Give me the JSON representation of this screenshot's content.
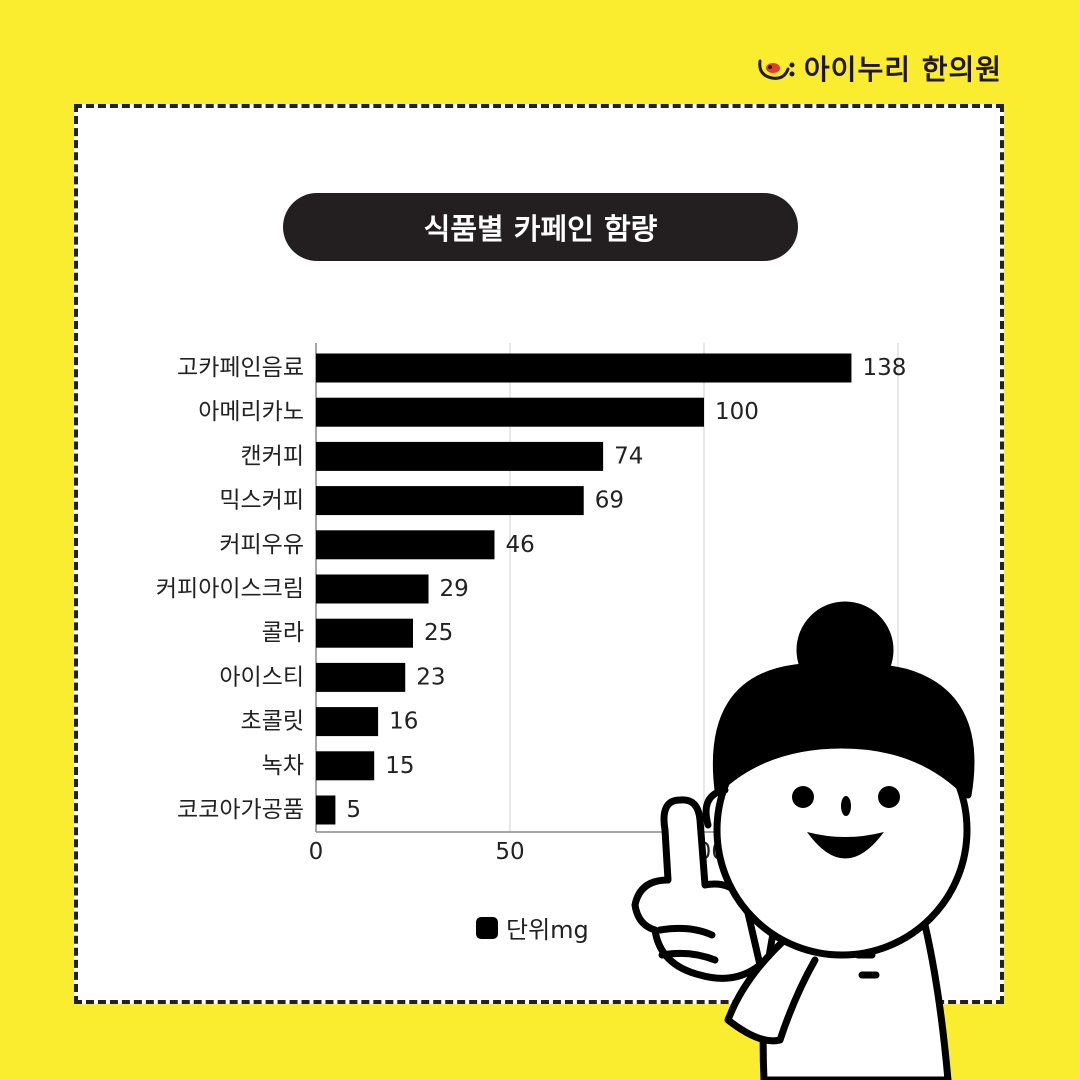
{
  "brand": {
    "name": "아이누리 한의원",
    "logo_icon": "smiley-face-icon"
  },
  "chart_data": {
    "type": "bar",
    "orientation": "horizontal",
    "title": "식품별 카페인 함량",
    "categories": [
      "고카페인음료",
      "아메리카노",
      "캔커피",
      "믹스커피",
      "커피우유",
      "커피아이스크림",
      "콜라",
      "아이스티",
      "초콜릿",
      "녹차",
      "코코아가공품"
    ],
    "values": [
      138,
      100,
      74,
      69,
      46,
      29,
      25,
      23,
      16,
      15,
      5
    ],
    "x_ticks": [
      0,
      50,
      100
    ],
    "xlim": [
      0,
      150
    ],
    "grid": true,
    "legend": {
      "label": "단위mg",
      "placement": "bottom",
      "color": "#000000"
    },
    "bar_color": "#000000"
  },
  "colors": {
    "background": "#FAED2F",
    "panel": "#FFFFFF",
    "pill": "#231F20"
  },
  "illustration": {
    "name": "pointing-character"
  }
}
